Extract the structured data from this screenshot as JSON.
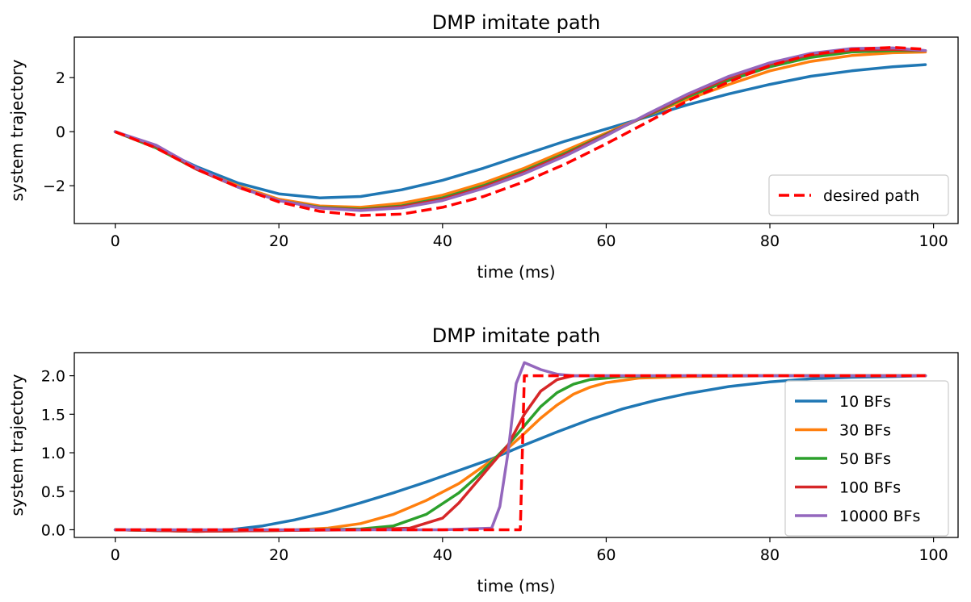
{
  "chart_data": [
    {
      "type": "line",
      "title": "DMP imitate path",
      "xlabel": "time (ms)",
      "ylabel": "system trajectory",
      "xlim": [
        -5,
        103
      ],
      "ylim": [
        -3.4,
        3.5
      ],
      "xticks": [
        0,
        20,
        40,
        60,
        80,
        100
      ],
      "yticks": [
        -2,
        0,
        2
      ],
      "ytick_labels": [
        "−2",
        "0",
        "2"
      ],
      "legend": {
        "placement": "lower right",
        "entries": [
          "desired path"
        ]
      },
      "series": [
        {
          "name": "",
          "color": "#1f77b4",
          "style": "solid",
          "x": [
            0,
            5,
            10,
            15,
            20,
            25,
            30,
            35,
            40,
            45,
            50,
            55,
            60,
            65,
            70,
            75,
            80,
            85,
            90,
            95,
            99
          ],
          "y": [
            0,
            -0.6,
            -1.3,
            -1.9,
            -2.3,
            -2.45,
            -2.4,
            -2.15,
            -1.8,
            -1.35,
            -0.85,
            -0.35,
            0.1,
            0.55,
            1.0,
            1.4,
            1.75,
            2.05,
            2.25,
            2.4,
            2.48
          ]
        },
        {
          "name": "",
          "color": "#ff7f0e",
          "style": "solid",
          "x": [
            0,
            5,
            10,
            15,
            20,
            25,
            30,
            35,
            40,
            45,
            50,
            55,
            60,
            65,
            70,
            75,
            80,
            85,
            90,
            95,
            99
          ],
          "y": [
            0,
            -0.6,
            -1.4,
            -2.0,
            -2.5,
            -2.75,
            -2.8,
            -2.65,
            -2.35,
            -1.9,
            -1.35,
            -0.7,
            -0.05,
            0.6,
            1.2,
            1.75,
            2.25,
            2.6,
            2.82,
            2.92,
            2.95
          ]
        },
        {
          "name": "",
          "color": "#2ca02c",
          "style": "solid",
          "x": [
            0,
            5,
            10,
            15,
            20,
            25,
            30,
            35,
            40,
            45,
            50,
            55,
            60,
            65,
            70,
            75,
            80,
            85,
            90,
            95,
            99
          ],
          "y": [
            0,
            -0.6,
            -1.4,
            -2.05,
            -2.55,
            -2.8,
            -2.87,
            -2.75,
            -2.45,
            -2.0,
            -1.45,
            -0.8,
            -0.1,
            0.6,
            1.3,
            1.9,
            2.4,
            2.75,
            2.95,
            3.0,
            3.0
          ]
        },
        {
          "name": "",
          "color": "#d62728",
          "style": "solid",
          "x": [
            0,
            5,
            10,
            15,
            20,
            25,
            30,
            35,
            40,
            45,
            50,
            55,
            60,
            65,
            70,
            75,
            80,
            85,
            90,
            95,
            99
          ],
          "y": [
            0,
            -0.55,
            -1.4,
            -2.05,
            -2.55,
            -2.82,
            -2.9,
            -2.78,
            -2.5,
            -2.05,
            -1.5,
            -0.85,
            -0.12,
            0.62,
            1.35,
            2.0,
            2.5,
            2.85,
            3.02,
            3.05,
            3.0
          ]
        },
        {
          "name": "",
          "color": "#9467bd",
          "style": "solid",
          "x": [
            0,
            5,
            10,
            15,
            20,
            25,
            30,
            35,
            40,
            45,
            50,
            55,
            60,
            65,
            70,
            75,
            80,
            85,
            90,
            95,
            99
          ],
          "y": [
            0,
            -0.5,
            -1.35,
            -2.05,
            -2.55,
            -2.83,
            -2.92,
            -2.82,
            -2.55,
            -2.1,
            -1.55,
            -0.9,
            -0.15,
            0.65,
            1.4,
            2.05,
            2.55,
            2.9,
            3.08,
            3.1,
            3.0
          ]
        },
        {
          "name": "desired path",
          "color": "#ff0000",
          "style": "dashed",
          "x": [
            0,
            5,
            10,
            15,
            20,
            25,
            30,
            35,
            40,
            45,
            50,
            55,
            60,
            65,
            70,
            75,
            80,
            85,
            90,
            95,
            99
          ],
          "y": [
            0,
            -0.6,
            -1.4,
            -2.05,
            -2.6,
            -2.95,
            -3.1,
            -3.05,
            -2.8,
            -2.4,
            -1.85,
            -1.2,
            -0.45,
            0.35,
            1.15,
            1.85,
            2.45,
            2.85,
            3.05,
            3.12,
            3.05
          ]
        }
      ]
    },
    {
      "type": "line",
      "title": "DMP imitate path",
      "xlabel": "time (ms)",
      "ylabel": "system trajectory",
      "xlim": [
        -5,
        103
      ],
      "ylim": [
        -0.1,
        2.3
      ],
      "xticks": [
        0,
        20,
        40,
        60,
        80,
        100
      ],
      "yticks": [
        0.0,
        0.5,
        1.0,
        1.5,
        2.0
      ],
      "ytick_labels": [
        "0.0",
        "0.5",
        "1.0",
        "1.5",
        "2.0"
      ],
      "legend": {
        "placement": "center right",
        "entries": [
          "10 BFs",
          "30 BFs",
          "50 BFs",
          "100 BFs",
          "10000 BFs"
        ]
      },
      "series": [
        {
          "name": "10 BFs",
          "color": "#1f77b4",
          "style": "solid",
          "x": [
            0,
            10,
            14,
            18,
            22,
            26,
            30,
            34,
            38,
            42,
            46,
            50,
            54,
            58,
            62,
            66,
            70,
            75,
            80,
            85,
            90,
            95,
            99
          ],
          "y": [
            0,
            -0.02,
            0,
            0.05,
            0.13,
            0.23,
            0.35,
            0.48,
            0.62,
            0.77,
            0.92,
            1.1,
            1.27,
            1.43,
            1.57,
            1.68,
            1.77,
            1.86,
            1.92,
            1.96,
            1.98,
            1.99,
            2.0
          ]
        },
        {
          "name": "30 BFs",
          "color": "#ff7f0e",
          "style": "solid",
          "x": [
            0,
            10,
            20,
            26,
            30,
            34,
            38,
            42,
            46,
            48,
            50,
            52,
            54,
            56,
            58,
            60,
            64,
            70,
            80,
            99
          ],
          "y": [
            0,
            -0.02,
            -0.01,
            0.02,
            0.08,
            0.2,
            0.38,
            0.6,
            0.9,
            1.06,
            1.25,
            1.45,
            1.62,
            1.76,
            1.85,
            1.91,
            1.97,
            1.99,
            2.0,
            2.0
          ]
        },
        {
          "name": "50 BFs",
          "color": "#2ca02c",
          "style": "solid",
          "x": [
            0,
            10,
            20,
            30,
            34,
            38,
            42,
            44,
            46,
            48,
            50,
            52,
            54,
            56,
            58,
            62,
            70,
            99
          ],
          "y": [
            0,
            -0.02,
            -0.01,
            0.01,
            0.05,
            0.2,
            0.48,
            0.67,
            0.88,
            1.1,
            1.35,
            1.6,
            1.78,
            1.89,
            1.95,
            1.99,
            2.0,
            2.0
          ]
        },
        {
          "name": "100 BFs",
          "color": "#d62728",
          "style": "solid",
          "x": [
            0,
            10,
            20,
            30,
            36,
            40,
            42,
            44,
            46,
            48,
            50,
            52,
            54,
            56,
            60,
            99
          ],
          "y": [
            0,
            -0.02,
            -0.01,
            0,
            0.02,
            0.15,
            0.35,
            0.6,
            0.85,
            1.1,
            1.5,
            1.8,
            1.95,
            2.0,
            2.0,
            2.0
          ]
        },
        {
          "name": "10000 BFs",
          "color": "#9467bd",
          "style": "solid",
          "x": [
            0,
            20,
            40,
            46,
            47,
            48,
            49,
            50,
            52,
            54,
            56,
            60,
            99
          ],
          "y": [
            0,
            0,
            0,
            0.02,
            0.3,
            1.0,
            1.9,
            2.17,
            2.08,
            2.02,
            2.0,
            2.0,
            2.0
          ]
        },
        {
          "name": "",
          "color": "#ff0000",
          "style": "dashed",
          "x": [
            0,
            49.5,
            50,
            99
          ],
          "y": [
            0,
            0,
            2.0,
            2.0
          ]
        }
      ]
    }
  ]
}
